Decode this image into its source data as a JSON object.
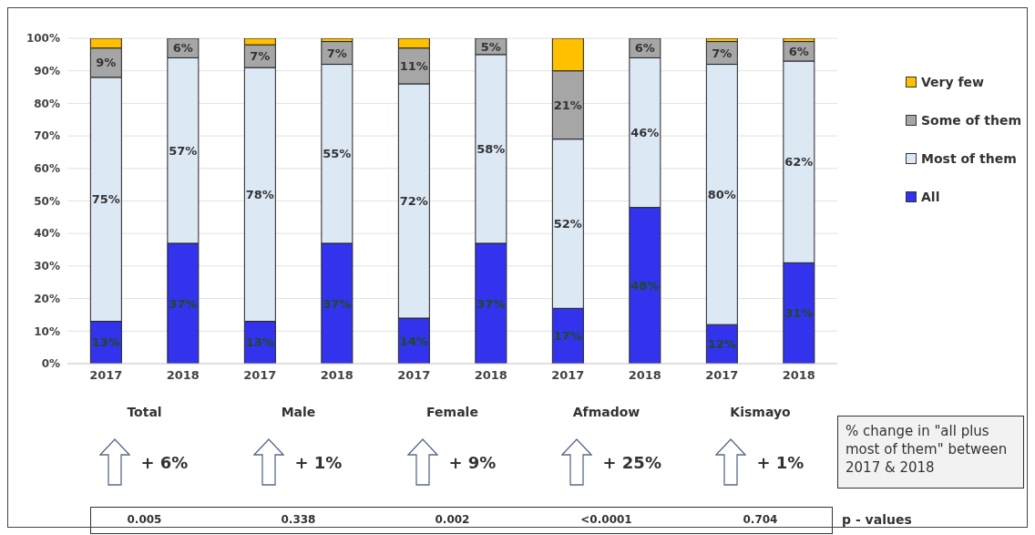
{
  "chart_data": {
    "type": "bar",
    "stacked": true,
    "categories": [
      "2017",
      "2018",
      "2017",
      "2018",
      "2017",
      "2018",
      "2017",
      "2018",
      "2017",
      "2018"
    ],
    "series": [
      {
        "name": "All",
        "color": "#3333ee",
        "values": [
          13,
          37,
          13,
          37,
          14,
          37,
          17,
          48,
          12,
          31
        ],
        "value_labels": [
          "13%",
          "37%",
          "13%",
          "37%",
          "14%",
          "37%",
          "17%",
          "48%",
          "12%",
          "31%"
        ]
      },
      {
        "name": "Most of them",
        "color": "#dde8f5",
        "values": [
          75,
          57,
          78,
          55,
          72,
          58,
          52,
          46,
          80,
          62
        ],
        "value_labels": [
          "75%",
          "57%",
          "78%",
          "55%",
          "72%",
          "58%",
          "52%",
          "46%",
          "80%",
          "62%"
        ]
      },
      {
        "name": "Some of them",
        "color": "#a6a6a6",
        "values": [
          9,
          6,
          7,
          7,
          11,
          5,
          21,
          6,
          7,
          6
        ],
        "value_labels": [
          "9%",
          "6%",
          "7%",
          "7%",
          "11%",
          "5%",
          "21%",
          "6%",
          "7%",
          "6%"
        ]
      },
      {
        "name": "Very few",
        "color": "#ffc000",
        "values": [
          3,
          0,
          2,
          1,
          3,
          0,
          10,
          0,
          1,
          1
        ],
        "value_labels": [
          null,
          null,
          null,
          null,
          null,
          null,
          null,
          null,
          null,
          null
        ]
      }
    ],
    "ylim": [
      0,
      100
    ],
    "yticks": [
      {
        "value": 0,
        "label": "0%"
      },
      {
        "value": 10,
        "label": "10%"
      },
      {
        "value": 20,
        "label": "20%"
      },
      {
        "value": 30,
        "label": "30%"
      },
      {
        "value": 40,
        "label": "40%"
      },
      {
        "value": 50,
        "label": "50%"
      },
      {
        "value": 60,
        "label": "60%"
      },
      {
        "value": 70,
        "label": "70%"
      },
      {
        "value": 80,
        "label": "80%"
      },
      {
        "value": 90,
        "label": "90%"
      },
      {
        "value": 100,
        "label": "100%"
      }
    ],
    "grid": "y",
    "legend": "right",
    "annotations": [
      "Total",
      "Male",
      "Female",
      "Afmadow",
      "Kismayo",
      "+ 6%",
      "+ 1%",
      "+ 9%",
      "+ 25%",
      "+ 1%",
      "% change in \"all plus most of them\" between 2017 & 2018",
      "0.005",
      "0.338",
      "0.002",
      "<0.0001",
      "0.704",
      "p - values"
    ]
  }
}
